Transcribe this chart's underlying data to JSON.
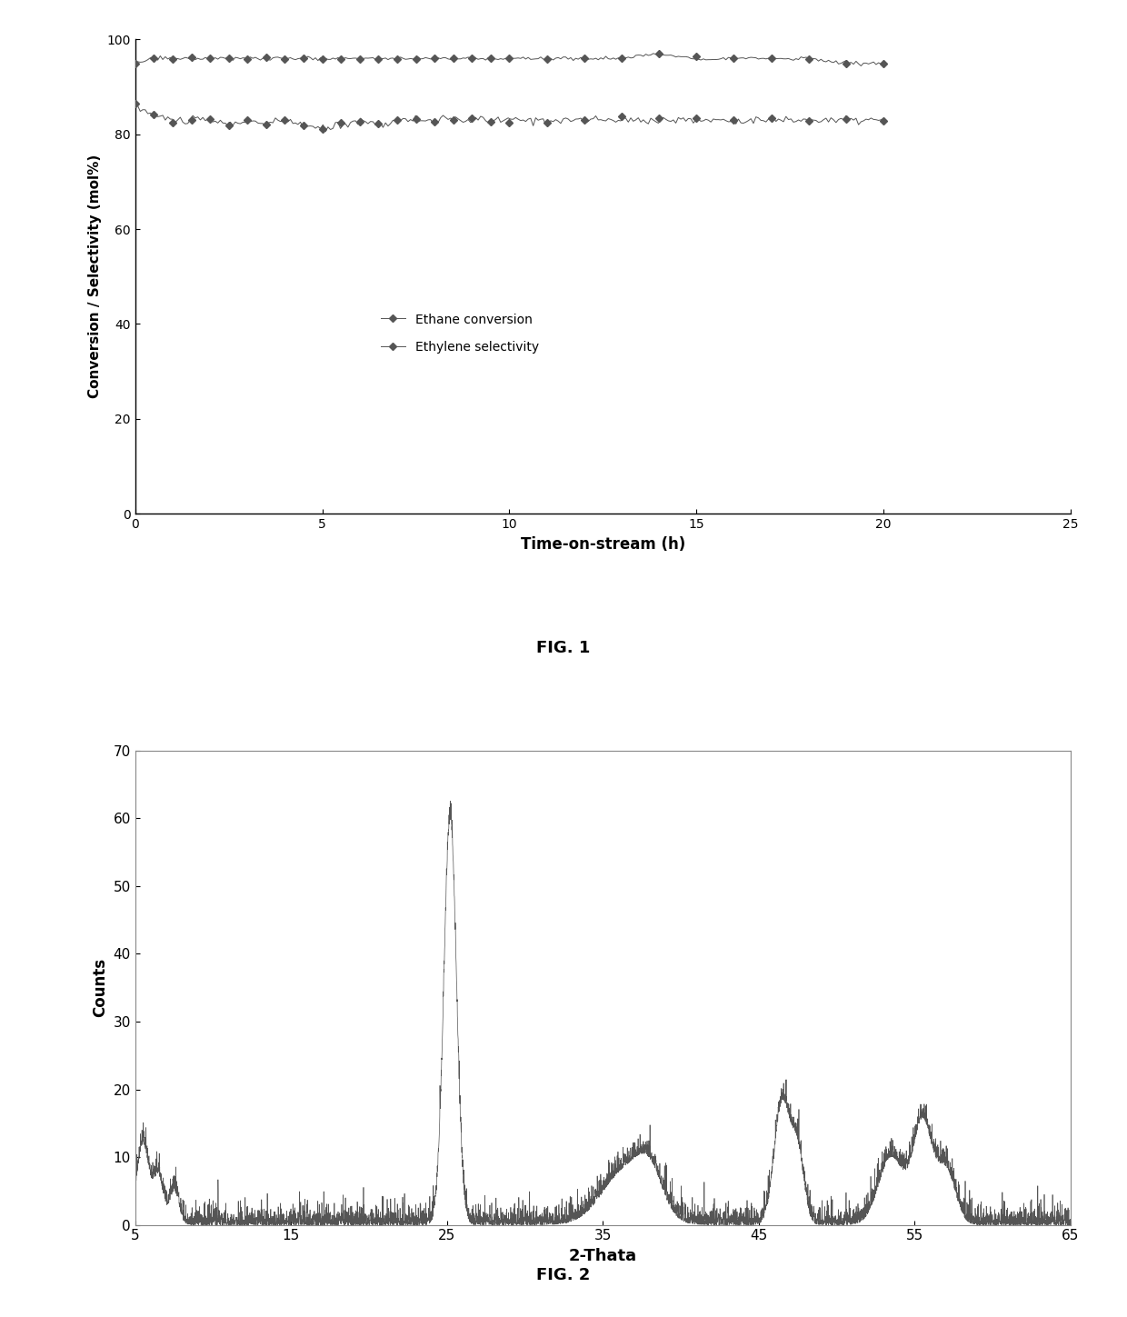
{
  "line_color": "#555555",
  "background_color": "#ffffff",
  "text_color": "#000000",
  "fig1": {
    "title": "FIG. 1",
    "xlabel": "Time-on-stream (h)",
    "ylabel": "Conversion / Selectivity (mol%)",
    "xlim": [
      0,
      25
    ],
    "ylim": [
      0,
      100
    ],
    "xticks": [
      0,
      5,
      10,
      15,
      20,
      25
    ],
    "yticks": [
      0,
      20,
      40,
      60,
      80,
      100
    ],
    "ethane_conversion": {
      "label": "Ethane conversion",
      "x": [
        0,
        0.5,
        1,
        1.5,
        2,
        2.5,
        3,
        3.5,
        4,
        4.5,
        5,
        5.5,
        6,
        6.5,
        7,
        7.5,
        8,
        8.5,
        9,
        9.5,
        10,
        11,
        12,
        13,
        14,
        15,
        16,
        17,
        18,
        19,
        20
      ],
      "y": [
        86,
        84,
        83,
        83,
        83,
        82,
        83,
        82,
        83,
        82,
        81,
        82,
        83,
        82,
        83,
        83,
        83,
        83,
        83,
        83,
        83,
        83,
        83,
        83,
        83,
        83,
        83,
        83,
        83,
        83,
        83
      ]
    },
    "ethylene_selectivity": {
      "label": "Ethylene selectivity",
      "x": [
        0,
        0.5,
        1,
        1.5,
        2,
        2.5,
        3,
        3.5,
        4,
        4.5,
        5,
        5.5,
        6,
        6.5,
        7,
        7.5,
        8,
        8.5,
        9,
        9.5,
        10,
        11,
        12,
        13,
        14,
        15,
        16,
        17,
        18,
        19,
        20
      ],
      "y": [
        95,
        96,
        96,
        96,
        96,
        96,
        96,
        96,
        96,
        96,
        96,
        96,
        96,
        96,
        96,
        96,
        96,
        96,
        96,
        96,
        96,
        96,
        96,
        96,
        97,
        96,
        96,
        96,
        96,
        95,
        95
      ]
    }
  },
  "fig2": {
    "title": "FIG. 2",
    "xlabel": "2-Thata",
    "ylabel": "Counts",
    "xlim": [
      5,
      65
    ],
    "ylim": [
      0,
      70
    ],
    "xticks": [
      5,
      15,
      25,
      35,
      45,
      55,
      65
    ],
    "yticks": [
      0,
      10,
      20,
      30,
      40,
      50,
      60,
      70
    ]
  }
}
